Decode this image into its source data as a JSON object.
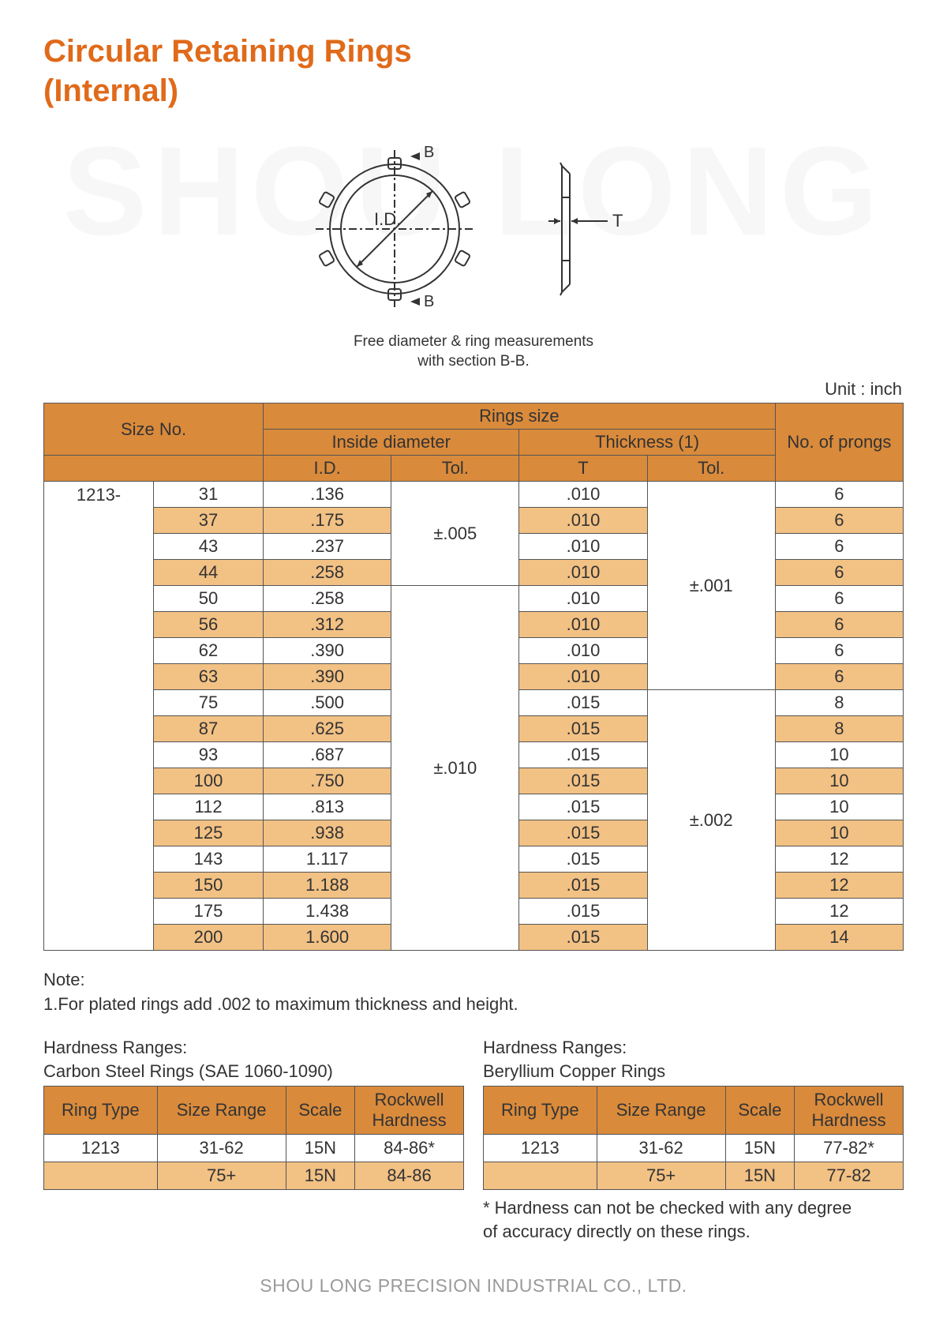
{
  "title_line1": "Circular Retaining Rings",
  "title_line2": "(Internal)",
  "watermark": "SHOU LONG",
  "diagram": {
    "id_label": "I.D.",
    "b_label_top": "B",
    "b_label_bot": "B",
    "t_label": "T",
    "caption_line1": "Free diameter & ring measurements",
    "caption_line2": "with section B-B.",
    "stroke": "#333333",
    "fill_none": "none"
  },
  "unit_label": "Unit : inch",
  "spec_table": {
    "headers": {
      "size_no": "Size No.",
      "rings_size": "Rings size",
      "inside_diameter": "Inside diameter",
      "thickness": "Thickness (1)",
      "no_prongs": "No. of prongs",
      "id": "I.D.",
      "id_tol": "Tol.",
      "t": "T",
      "t_tol": "Tol."
    },
    "prefix": "1213-",
    "id_tol_groups": [
      {
        "value": "±.005",
        "span": 4
      },
      {
        "value": "±.010",
        "span": 14
      }
    ],
    "t_tol_groups": [
      {
        "value": "±.001",
        "span": 8
      },
      {
        "value": "±.002",
        "span": 10
      }
    ],
    "rows": [
      {
        "sn": "31",
        "id": ".136",
        "t": ".010",
        "np": "6",
        "alt": false
      },
      {
        "sn": "37",
        "id": ".175",
        "t": ".010",
        "np": "6",
        "alt": true
      },
      {
        "sn": "43",
        "id": ".237",
        "t": ".010",
        "np": "6",
        "alt": false
      },
      {
        "sn": "44",
        "id": ".258",
        "t": ".010",
        "np": "6",
        "alt": true
      },
      {
        "sn": "50",
        "id": ".258",
        "t": ".010",
        "np": "6",
        "alt": false
      },
      {
        "sn": "56",
        "id": ".312",
        "t": ".010",
        "np": "6",
        "alt": true
      },
      {
        "sn": "62",
        "id": ".390",
        "t": ".010",
        "np": "6",
        "alt": false
      },
      {
        "sn": "63",
        "id": ".390",
        "t": ".010",
        "np": "6",
        "alt": true
      },
      {
        "sn": "75",
        "id": ".500",
        "t": ".015",
        "np": "8",
        "alt": false
      },
      {
        "sn": "87",
        "id": ".625",
        "t": ".015",
        "np": "8",
        "alt": true
      },
      {
        "sn": "93",
        "id": ".687",
        "t": ".015",
        "np": "10",
        "alt": false
      },
      {
        "sn": "100",
        "id": ".750",
        "t": ".015",
        "np": "10",
        "alt": true
      },
      {
        "sn": "112",
        "id": ".813",
        "t": ".015",
        "np": "10",
        "alt": false
      },
      {
        "sn": "125",
        "id": ".938",
        "t": ".015",
        "np": "10",
        "alt": true
      },
      {
        "sn": "143",
        "id": "1.117",
        "t": ".015",
        "np": "12",
        "alt": false
      },
      {
        "sn": "150",
        "id": "1.188",
        "t": ".015",
        "np": "12",
        "alt": true
      },
      {
        "sn": "175",
        "id": "1.438",
        "t": ".015",
        "np": "12",
        "alt": false
      },
      {
        "sn": "200",
        "id": "1.600",
        "t": ".015",
        "np": "14",
        "alt": true
      }
    ],
    "col_widths_pct": [
      12,
      12,
      14,
      14,
      14,
      14,
      14
    ]
  },
  "note": {
    "heading": "Note:",
    "line1": "1.For plated rings add .002 to maximum thickness and height."
  },
  "hardness": {
    "left": {
      "title_l1": "Hardness Ranges:",
      "title_l2": "Carbon Steel Rings (SAE 1060-1090)",
      "cols": [
        "Ring Type",
        "Size Range",
        "Scale",
        "Rockwell Hardness"
      ],
      "rows": [
        {
          "cells": [
            "1213",
            "31-62",
            "15N",
            "84-86*"
          ],
          "alt": false
        },
        {
          "cells": [
            "",
            "75+",
            "15N",
            "84-86"
          ],
          "alt": true
        }
      ]
    },
    "right": {
      "title_l1": "Hardness Ranges:",
      "title_l2": "Beryllium Copper Rings",
      "cols": [
        "Ring Type",
        "Size Range",
        "Scale",
        "Rockwell Hardness"
      ],
      "rows": [
        {
          "cells": [
            "1213",
            "31-62",
            "15N",
            "77-82*"
          ],
          "alt": false
        },
        {
          "cells": [
            "",
            "75+",
            "15N",
            "77-82"
          ],
          "alt": true
        }
      ]
    },
    "footnote_l1": "* Hardness can not be checked with any degree",
    "footnote_l2": "of accuracy directly on these rings."
  },
  "footer": "SHOU LONG PRECISION INDUSTRIAL CO., LTD."
}
